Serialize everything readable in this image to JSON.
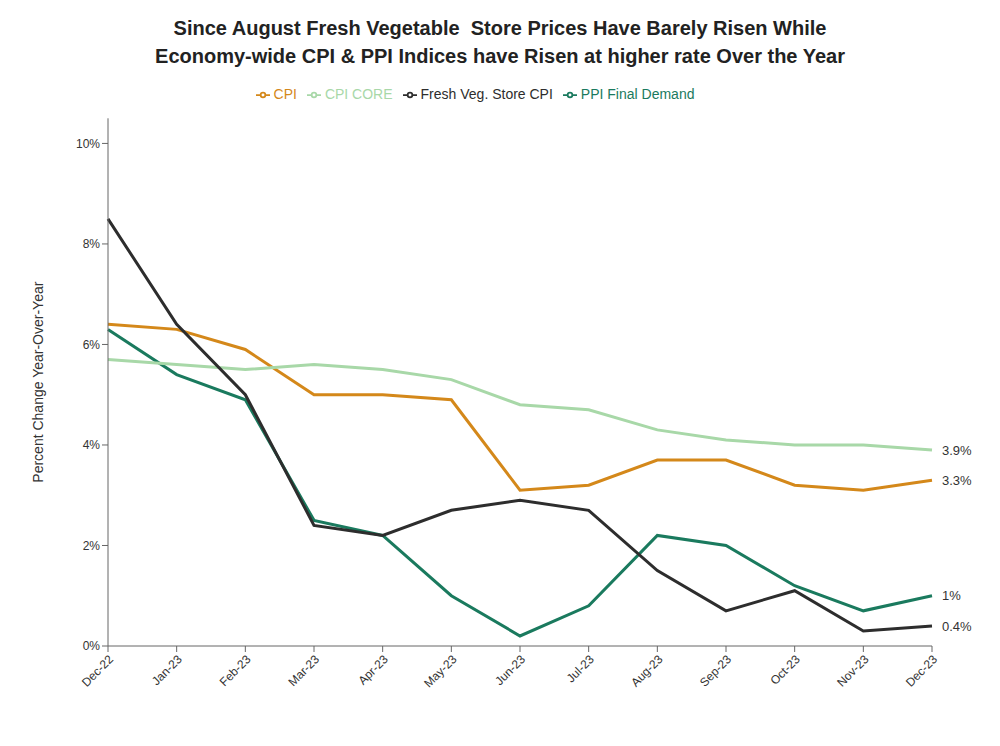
{
  "chart_data": {
    "type": "line",
    "title": "Since August Fresh Vegetable  Store Prices Have Barely Risen While\nEconomy-wide CPI & PPI Indices have Risen at higher rate Over the Year",
    "y_label": "Percent Change Year-Over-Year",
    "categories": [
      "Dec-22",
      "Jan-23",
      "Feb-23",
      "Mar-23",
      "Apr-23",
      "May-23",
      "Jun-23",
      "Jul-23",
      "Aug-23",
      "Sep-23",
      "Oct-23",
      "Nov-23",
      "Dec-23"
    ],
    "series": [
      {
        "name": "PPI Final Demand",
        "color": "#1A7A5E",
        "values": [
          6.3,
          5.4,
          4.9,
          2.5,
          2.2,
          1.0,
          0.2,
          0.8,
          2.2,
          2.0,
          1.2,
          0.7,
          1.0
        ]
      },
      {
        "name": "CPI",
        "color": "#D4881A",
        "values": [
          6.4,
          6.3,
          5.9,
          5.0,
          5.0,
          4.9,
          3.1,
          3.2,
          3.7,
          3.7,
          3.2,
          3.1,
          3.3
        ]
      },
      {
        "name": "CPI CORE",
        "color": "#A8D8A8",
        "values": [
          5.7,
          5.6,
          5.5,
          5.6,
          5.5,
          5.3,
          4.8,
          4.7,
          4.3,
          4.1,
          4.0,
          4.0,
          3.9
        ]
      },
      {
        "name": "Fresh Veg. Store CPI",
        "color": "#2D2D2D",
        "values": [
          8.5,
          6.4,
          5.0,
          2.4,
          2.2,
          2.7,
          2.9,
          2.7,
          1.5,
          0.7,
          1.1,
          0.3,
          0.4
        ]
      }
    ],
    "annotations": [
      {
        "text": "1%",
        "x": "Dec-23",
        "y": 1.0
      },
      {
        "text": "3.3%",
        "x": "Dec-23",
        "y": 3.3
      },
      {
        "text": "3.9%",
        "x": "Dec-23",
        "y": 3.9
      },
      {
        "text": "0.4%",
        "x": "Dec-23",
        "y": 0.4
      }
    ],
    "ylim": [
      0,
      10.5
    ],
    "yticks": [
      {
        "value": 0,
        "label": "0%"
      },
      {
        "value": 2,
        "label": "2%"
      },
      {
        "value": 4,
        "label": "4%"
      },
      {
        "value": 6,
        "label": "6%"
      },
      {
        "value": 8,
        "label": "8%"
      },
      {
        "value": 10,
        "label": "10%"
      }
    ],
    "grid": false,
    "legend": "top"
  }
}
